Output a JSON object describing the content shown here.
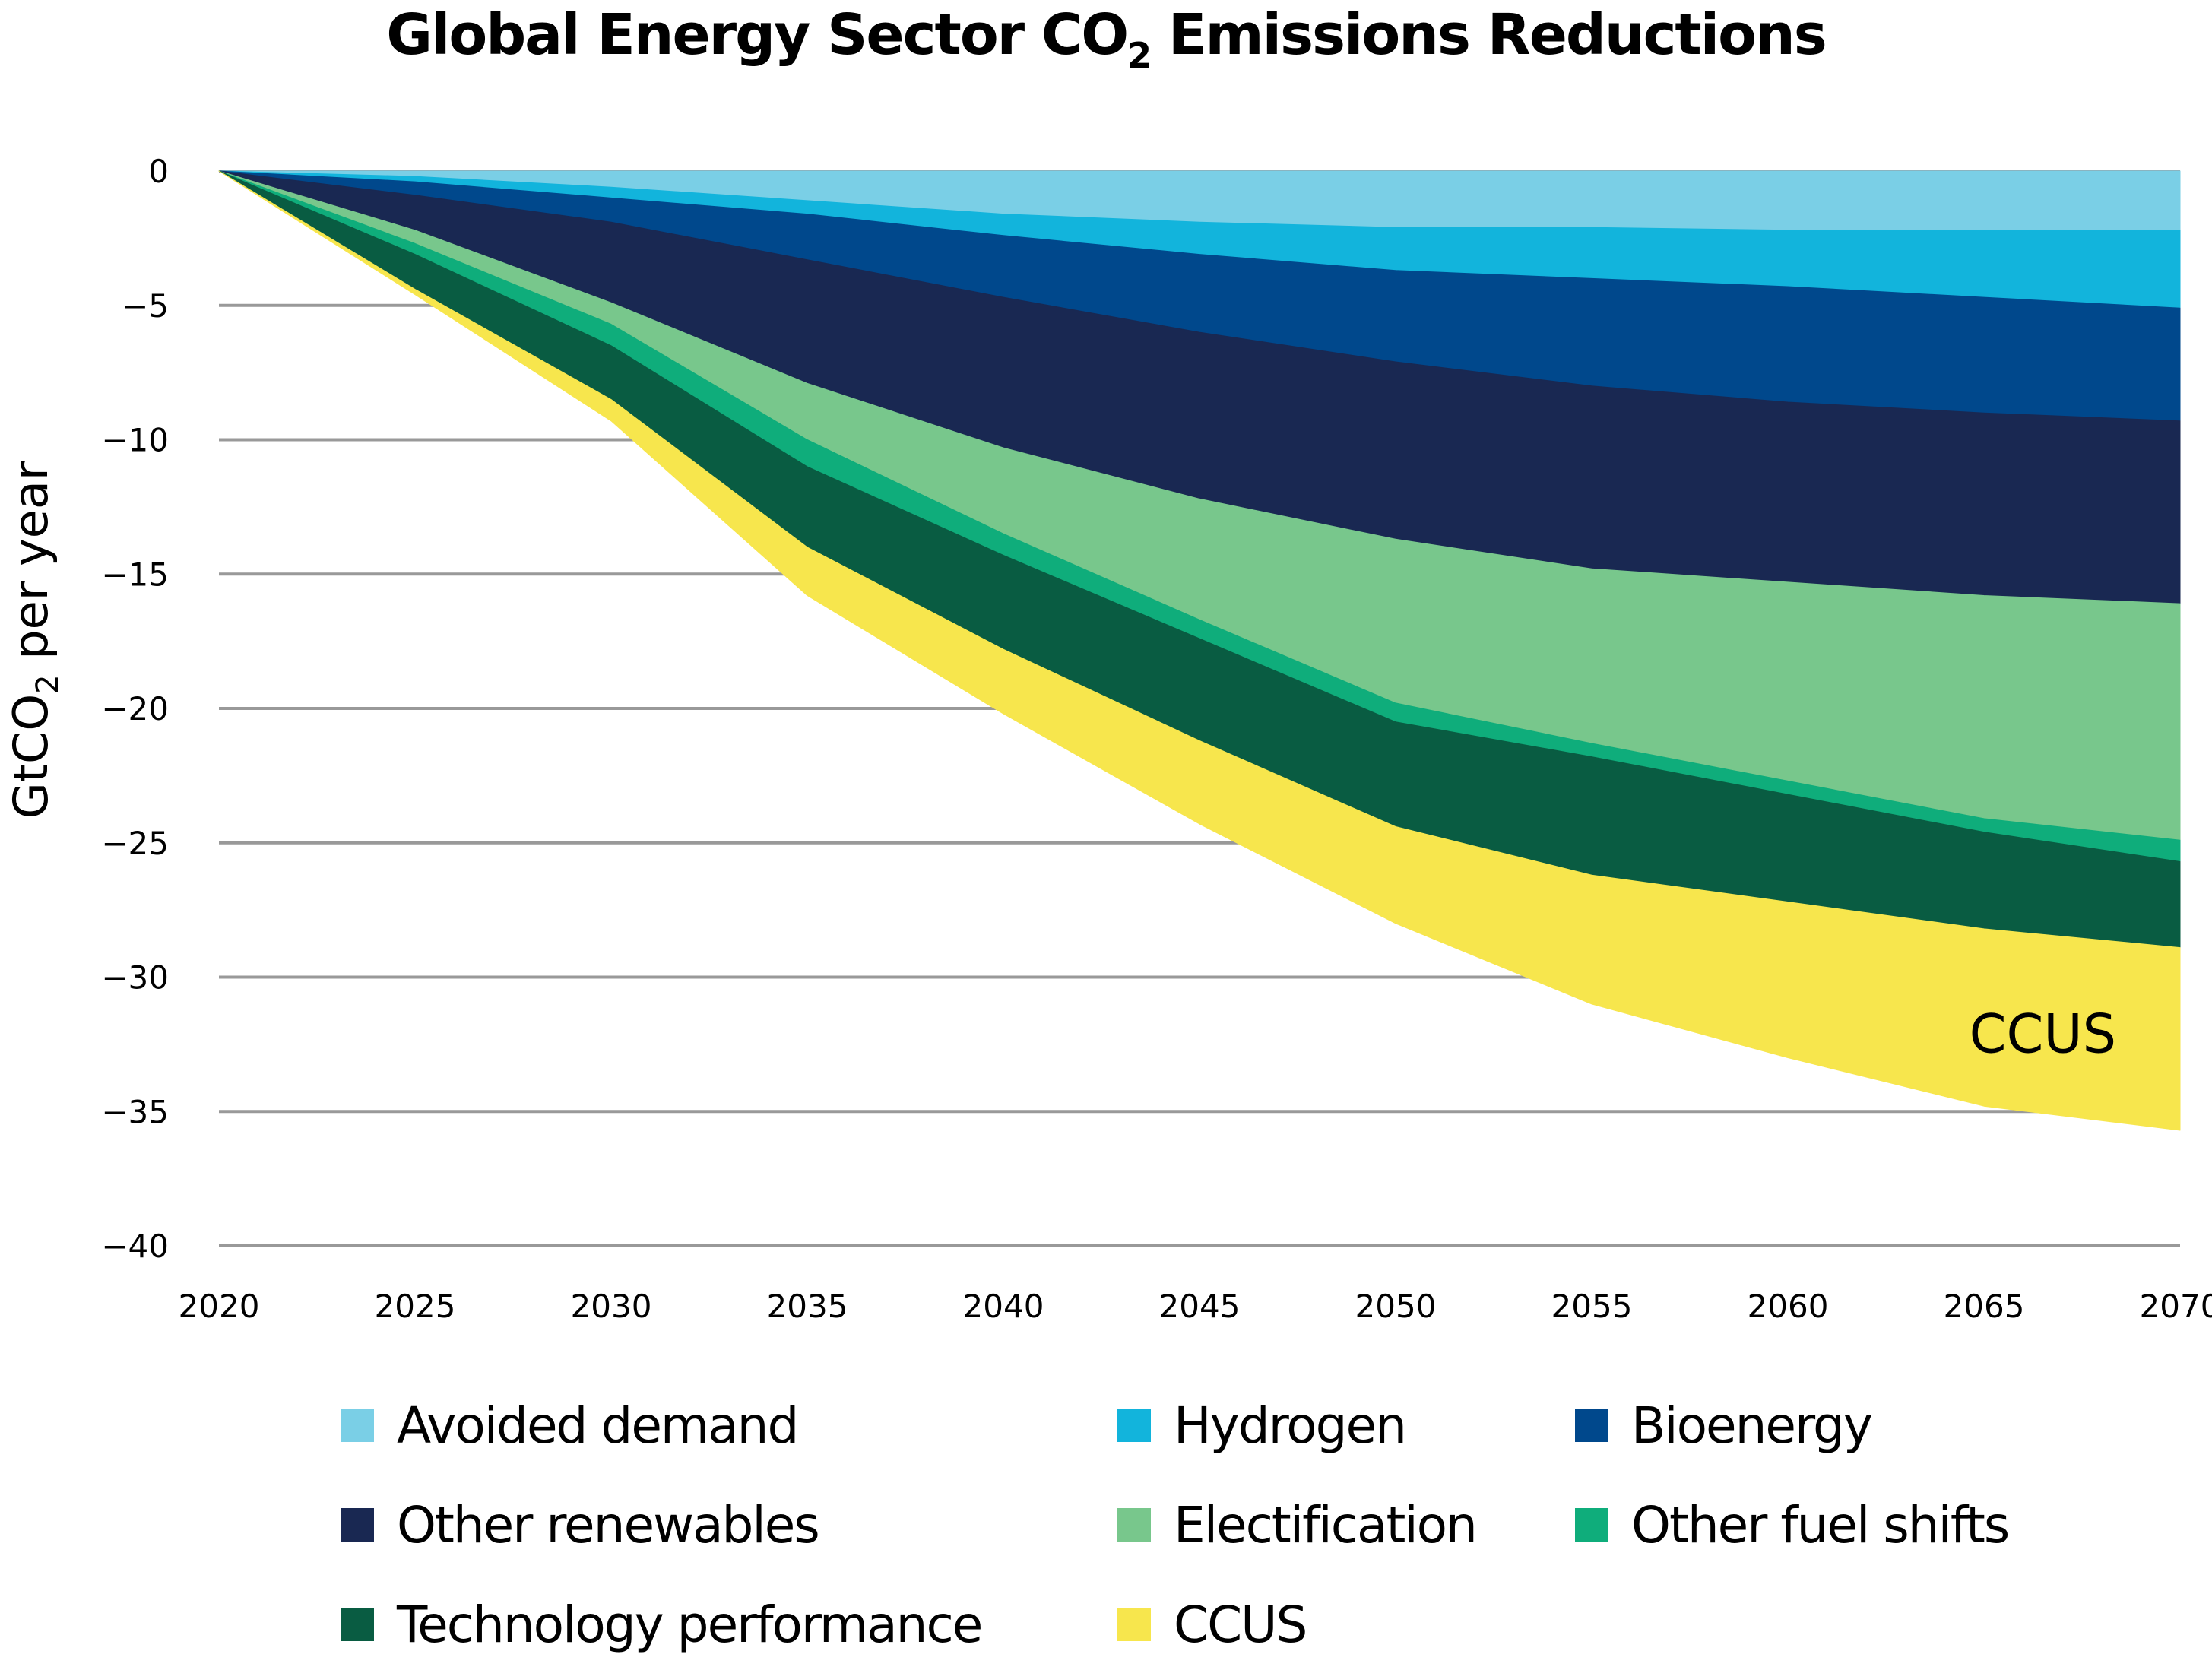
{
  "title": {
    "prefix": "Global Energy Sector CO",
    "subscript": "2",
    "suffix": " Emissions Reductions"
  },
  "chart_data": {
    "type": "area",
    "stacked": true,
    "title": "Global Energy Sector CO2 Emissions Reductions",
    "xlabel": "",
    "ylabel": "GtCO2 per year",
    "ylabel_parts": {
      "prefix": "GtCO",
      "subscript": "2",
      "suffix": " per year"
    },
    "xlim": [
      2020,
      2070
    ],
    "ylim": [
      -40,
      0
    ],
    "x_ticks": [
      2020,
      2025,
      2030,
      2035,
      2040,
      2045,
      2050,
      2055,
      2060,
      2065,
      2070
    ],
    "x_tick_labels": [
      "2020",
      "2025",
      "2030",
      "2035",
      "2040",
      "2045",
      "2050",
      "2055",
      "2060",
      "2065",
      "2070"
    ],
    "y_ticks": [
      0,
      -5,
      -10,
      -15,
      -20,
      -25,
      -30,
      -35,
      -40
    ],
    "y_tick_labels": [
      "0",
      "−5",
      "−10",
      "−15",
      "−20",
      "−25",
      "−30",
      "−35",
      "−40"
    ],
    "grid": "horizontal",
    "legend_position": "bottom",
    "x": [
      2020,
      2025,
      2030,
      2035,
      2040,
      2045,
      2050,
      2055,
      2060,
      2065,
      2070
    ],
    "series": [
      {
        "name": "Avoided demand",
        "color": "#7ACFE6",
        "values": [
          0,
          -0.2,
          -0.6,
          -1.1,
          -1.6,
          -1.9,
          -2.1,
          -2.1,
          -2.2,
          -2.2,
          -2.2
        ]
      },
      {
        "name": "Hydrogen",
        "color": "#12B4DC",
        "values": [
          0,
          -0.2,
          -0.4,
          -0.5,
          -0.8,
          -1.2,
          -1.6,
          -1.9,
          -2.1,
          -2.5,
          -2.9
        ]
      },
      {
        "name": "Bioenergy",
        "color": "#00488C",
        "values": [
          0,
          -0.5,
          -0.9,
          -1.7,
          -2.3,
          -2.9,
          -3.4,
          -4.0,
          -4.3,
          -4.3,
          -4.2
        ]
      },
      {
        "name": "Other renewables",
        "color": "#192852",
        "values": [
          0,
          -1.3,
          -3.0,
          -4.6,
          -5.6,
          -6.2,
          -6.6,
          -6.8,
          -6.7,
          -6.8,
          -6.8
        ]
      },
      {
        "name": "Electification",
        "color": "#78C78C",
        "values": [
          0,
          -0.5,
          -0.8,
          -2.1,
          -3.2,
          -4.5,
          -6.1,
          -6.5,
          -7.4,
          -8.3,
          -8.8
        ]
      },
      {
        "name": "Other fuel shifts",
        "color": "#0FAD7B",
        "values": [
          0,
          -0.4,
          -0.8,
          -1.0,
          -0.8,
          -0.7,
          -0.7,
          -0.5,
          -0.5,
          -0.5,
          -0.8
        ]
      },
      {
        "name": "Technology performance",
        "color": "#095C42",
        "values": [
          0,
          -1.3,
          -2.0,
          -3.0,
          -3.5,
          -3.8,
          -3.9,
          -4.4,
          -4.0,
          -3.6,
          -3.2
        ]
      },
      {
        "name": "CCUS",
        "color": "#F7E64D",
        "values": [
          0,
          -0.2,
          -0.8,
          -1.8,
          -2.4,
          -3.1,
          -3.6,
          -4.8,
          -5.8,
          -6.6,
          -6.8
        ]
      }
    ],
    "annotations": [
      {
        "text": "CCUS",
        "x": 2066.5,
        "y": -32.8
      }
    ]
  },
  "legend": {
    "items": [
      {
        "label": "Avoided demand",
        "color": "#7ACFE6"
      },
      {
        "label": "Hydrogen",
        "color": "#12B4DC"
      },
      {
        "label": "Bioenergy",
        "color": "#00488C"
      },
      {
        "label": "Other renewables",
        "color": "#192852"
      },
      {
        "label": "Electification",
        "color": "#78C78C"
      },
      {
        "label": "Other fuel shifts",
        "color": "#0FAD7B"
      },
      {
        "label": "Technology performance",
        "color": "#095C42"
      },
      {
        "label": "CCUS",
        "color": "#F7E64D"
      }
    ]
  }
}
